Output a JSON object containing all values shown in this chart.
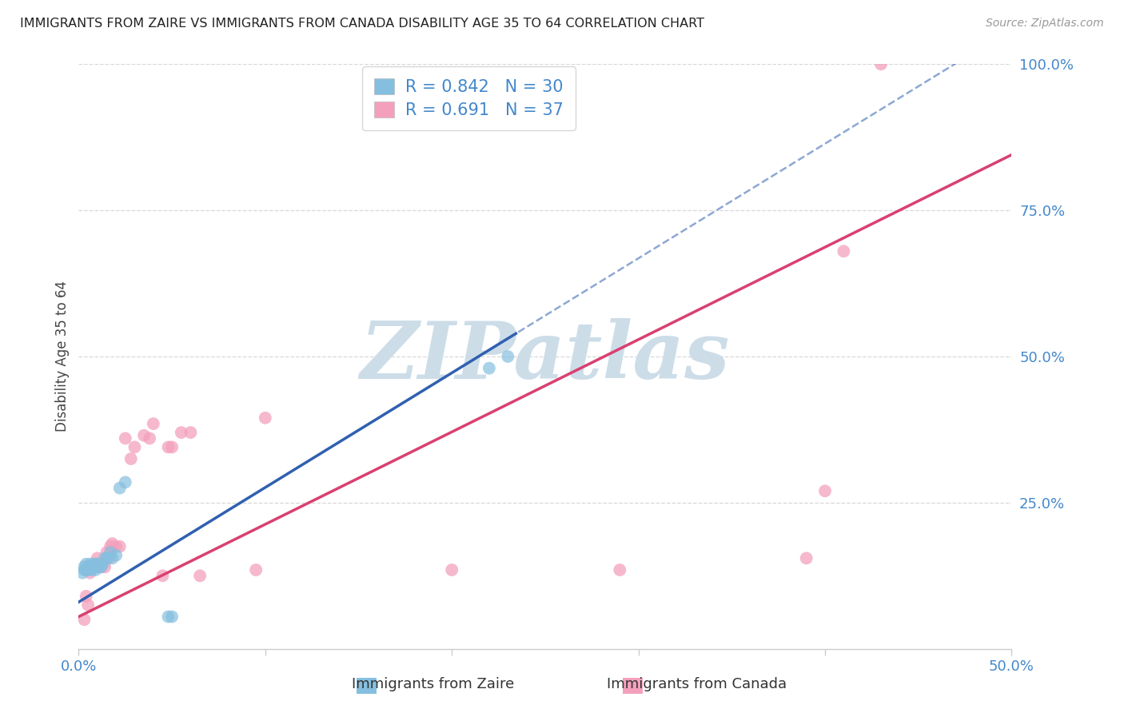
{
  "title": "IMMIGRANTS FROM ZAIRE VS IMMIGRANTS FROM CANADA DISABILITY AGE 35 TO 64 CORRELATION CHART",
  "source": "Source: ZipAtlas.com",
  "ylabel": "Disability Age 35 to 64",
  "xlim": [
    0.0,
    0.5
  ],
  "ylim": [
    0.0,
    1.0
  ],
  "xtick_positions": [
    0.0,
    0.1,
    0.2,
    0.3,
    0.4,
    0.5
  ],
  "xtick_labels": [
    "0.0%",
    "",
    "",
    "",
    "",
    "50.0%"
  ],
  "ytick_positions": [
    0.25,
    0.5,
    0.75,
    1.0
  ],
  "ytick_labels": [
    "25.0%",
    "50.0%",
    "75.0%",
    "100.0%"
  ],
  "zaire_scatter_color": "#85bfdf",
  "canada_scatter_color": "#f4a0bc",
  "zaire_line_color": "#3060b0",
  "canada_line_color": "#d94070",
  "zaire_R": 0.842,
  "zaire_N": 30,
  "canada_R": 0.691,
  "canada_N": 37,
  "watermark": "ZIPatlas",
  "watermark_color": "#ccdde8",
  "legend_text_color": "#4488cc",
  "background_color": "#ffffff",
  "grid_color": "#d8d8d8",
  "title_color": "#222222",
  "source_color": "#999999",
  "zaire_x": [
    0.002,
    0.003,
    0.003,
    0.004,
    0.004,
    0.005,
    0.005,
    0.006,
    0.006,
    0.007,
    0.007,
    0.008,
    0.008,
    0.009,
    0.009,
    0.01,
    0.011,
    0.012,
    0.013,
    0.014,
    0.015,
    0.017,
    0.018,
    0.02,
    0.022,
    0.025,
    0.048,
    0.05,
    0.22,
    0.23
  ],
  "zaire_y": [
    0.13,
    0.135,
    0.14,
    0.135,
    0.145,
    0.135,
    0.14,
    0.14,
    0.145,
    0.135,
    0.14,
    0.14,
    0.145,
    0.135,
    0.145,
    0.145,
    0.14,
    0.14,
    0.145,
    0.155,
    0.155,
    0.165,
    0.155,
    0.16,
    0.275,
    0.285,
    0.055,
    0.055,
    0.48,
    0.5
  ],
  "canada_x": [
    0.003,
    0.004,
    0.005,
    0.006,
    0.007,
    0.008,
    0.009,
    0.01,
    0.011,
    0.012,
    0.014,
    0.015,
    0.016,
    0.017,
    0.018,
    0.02,
    0.022,
    0.025,
    0.028,
    0.03,
    0.035,
    0.038,
    0.04,
    0.045,
    0.048,
    0.05,
    0.055,
    0.06,
    0.065,
    0.095,
    0.1,
    0.2,
    0.29,
    0.39,
    0.4,
    0.41,
    0.43
  ],
  "canada_y": [
    0.05,
    0.09,
    0.075,
    0.13,
    0.14,
    0.14,
    0.145,
    0.155,
    0.145,
    0.14,
    0.14,
    0.165,
    0.155,
    0.175,
    0.18,
    0.175,
    0.175,
    0.36,
    0.325,
    0.345,
    0.365,
    0.36,
    0.385,
    0.125,
    0.345,
    0.345,
    0.37,
    0.37,
    0.125,
    0.135,
    0.395,
    0.135,
    0.135,
    0.155,
    0.27,
    0.68,
    1.0
  ],
  "zaire_line_slope": 1.96,
  "zaire_line_intercept": 0.08,
  "canada_line_slope": 1.58,
  "canada_line_intercept": 0.055
}
